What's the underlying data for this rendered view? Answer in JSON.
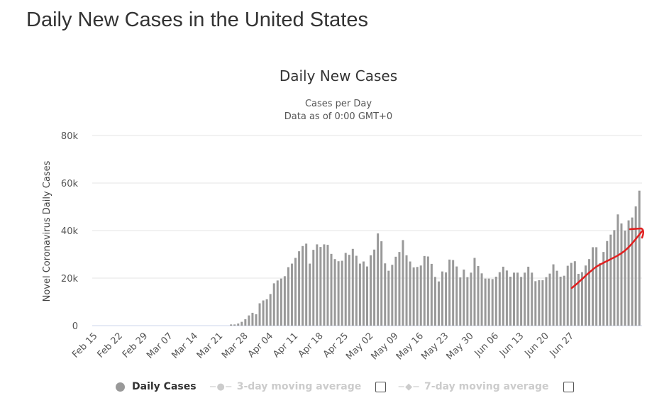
{
  "page": {
    "title": "Daily New Cases in the United States"
  },
  "chart_data": {
    "type": "bar",
    "title": "Daily New Cases",
    "subtitle": [
      "Cases per Day",
      "Data as of 0:00 GMT+0"
    ],
    "xlabel": "",
    "ylabel": "Novel Coronavirus Daily Cases",
    "ylim": [
      0,
      80000
    ],
    "yticks": [
      0,
      20000,
      40000,
      60000,
      80000
    ],
    "ytick_labels": [
      "0",
      "20k",
      "40k",
      "60k",
      "80k"
    ],
    "grid": true,
    "start_date": "Feb 15",
    "xtick_labels": [
      "Feb 15",
      "Feb 22",
      "Feb 29",
      "Mar 07",
      "Mar 14",
      "Mar 21",
      "Mar 28",
      "Apr 04",
      "Apr 11",
      "Apr 18",
      "Apr 25",
      "May 02",
      "May 09",
      "May 16",
      "May 23",
      "May 30",
      "Jun 06",
      "Jun 13",
      "Jun 20",
      "Jun 27"
    ],
    "xtick_every_days": 7,
    "color": "#999999",
    "series": [
      {
        "name": "Daily Cases",
        "values": [
          0,
          0,
          0,
          0,
          0,
          0,
          0,
          0,
          0,
          0,
          0,
          0,
          0,
          0,
          0,
          0,
          0,
          0,
          0,
          0,
          0,
          0,
          0,
          0,
          0,
          0,
          0,
          0,
          0,
          0,
          0,
          0,
          0,
          0,
          0,
          0,
          0,
          0,
          500,
          500,
          900,
          1600,
          2700,
          4300,
          5400,
          4800,
          9400,
          10600,
          11100,
          13300,
          17800,
          19000,
          19800,
          20800,
          24600,
          26100,
          28500,
          31300,
          33500,
          34500,
          26100,
          31900,
          34200,
          33100,
          34200,
          34000,
          30200,
          28000,
          27100,
          27300,
          30600,
          29800,
          32300,
          29400,
          26100,
          27000,
          24900,
          29600,
          32000,
          38800,
          35500,
          26200,
          23100,
          25600,
          29000,
          31000,
          36000,
          29600,
          27000,
          24500,
          24700,
          25300,
          29300,
          29100,
          26000,
          20500,
          18600,
          22800,
          22400,
          27800,
          27600,
          24900,
          20300,
          23600,
          20400,
          22300,
          28500,
          25100,
          22000,
          19800,
          19800,
          19600,
          20600,
          22500,
          24800,
          23200,
          20600,
          22300,
          22300,
          20500,
          22300,
          24800,
          22300,
          18700,
          19100,
          19100,
          20400,
          21900,
          25800,
          23100,
          20600,
          21000,
          25200,
          26400,
          27100,
          21800,
          22500,
          25300,
          28000,
          33000,
          33000,
          26300,
          31000,
          35600,
          38300,
          40200,
          46800,
          43000,
          40000,
          44300,
          45500,
          50200,
          56800
        ]
      }
    ],
    "annotation": {
      "type": "hand-drawn arrow",
      "color": "#e02020",
      "from_date": "Jun 16",
      "to_date": "Jul 02",
      "description": "upward trend arrow"
    },
    "legend_placement": "bottom"
  },
  "legend": {
    "items": [
      {
        "label": "Daily Cases",
        "active": true
      },
      {
        "label": "3-day moving average",
        "active": false
      },
      {
        "label": "7-day moving average",
        "active": false
      }
    ]
  }
}
